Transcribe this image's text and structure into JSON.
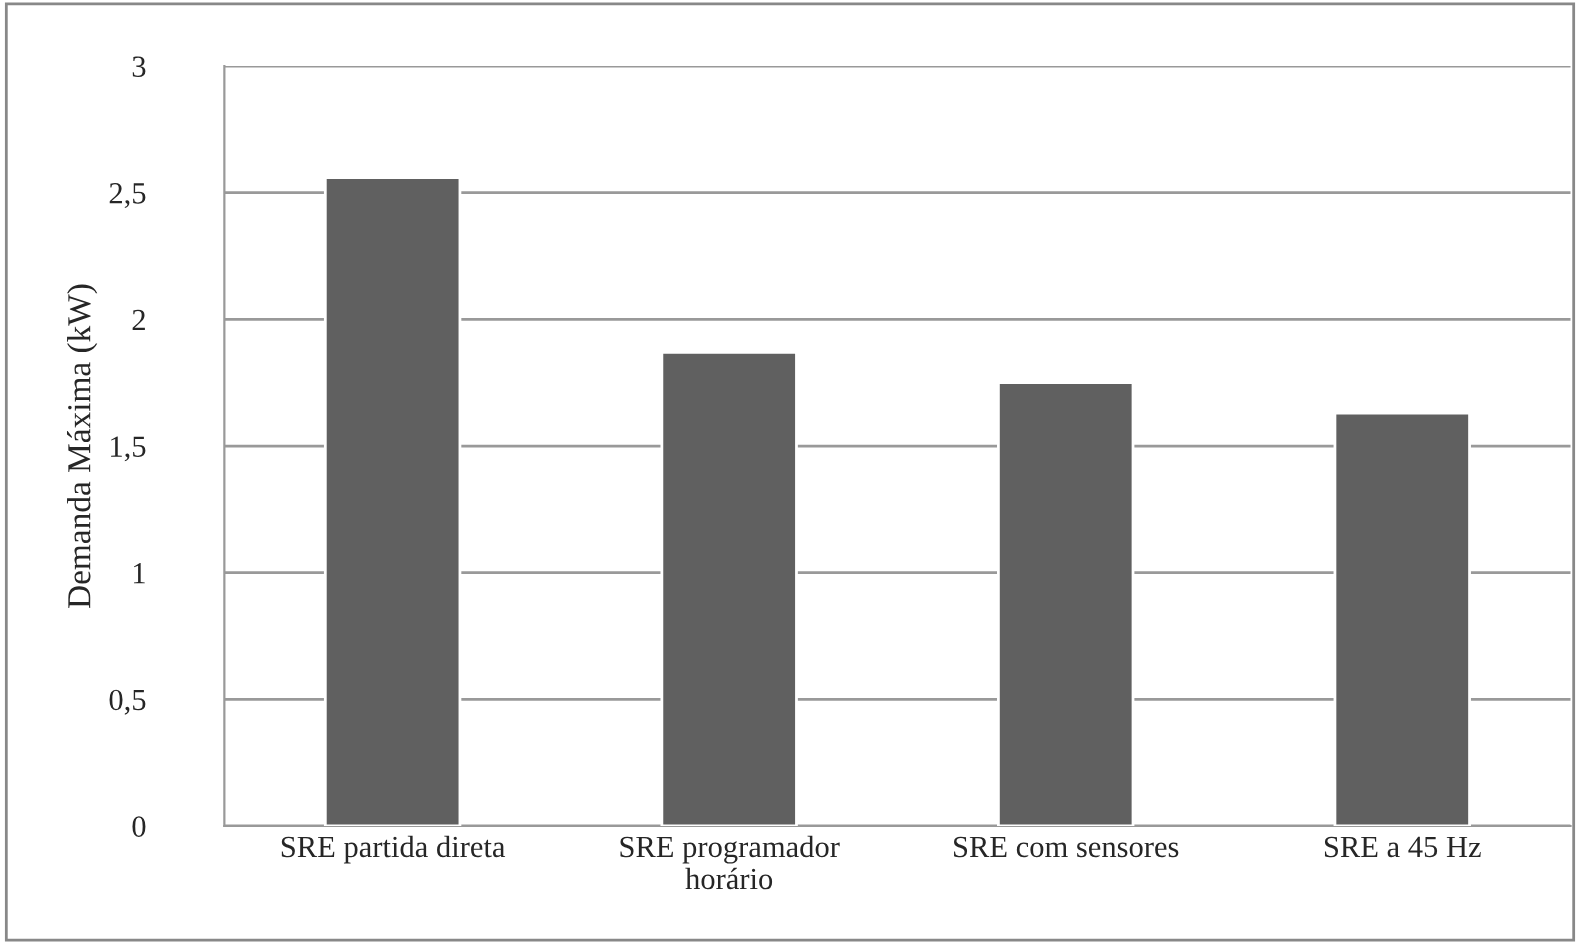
{
  "chart_data": {
    "type": "bar",
    "ylabel": "Demanda Máxima (kW)",
    "categories": [
      "SRE partida direta",
      "SRE programador\nhorário",
      "SRE com sensores",
      "SRE a 45 Hz"
    ],
    "values": [
      2.56,
      1.87,
      1.75,
      1.63
    ],
    "color": "#606060",
    "ylim": [
      0,
      3
    ],
    "yticks": [
      0,
      {
        "value": 0.5,
        "label": "0,5"
      },
      1,
      {
        "value": 1.5,
        "label": "1,5"
      },
      2,
      {
        "value": 2.5,
        "label": "2,5"
      },
      3
    ],
    "grid": "y",
    "legend": false
  }
}
